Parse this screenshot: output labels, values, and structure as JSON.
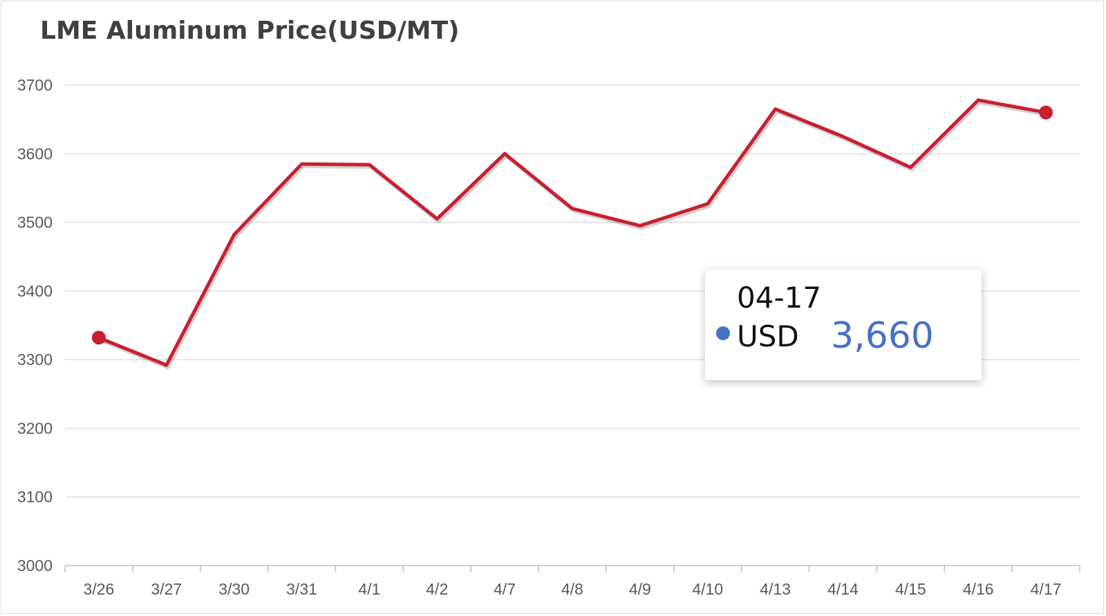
{
  "chart_data": {
    "type": "line",
    "title": "LME Aluminum Price(USD/MT)",
    "categories": [
      "3/26",
      "3/27",
      "3/30",
      "3/31",
      "4/1",
      "4/2",
      "4/7",
      "4/8",
      "4/9",
      "4/10",
      "4/13",
      "4/14",
      "4/15",
      "4/16",
      "4/17"
    ],
    "series": [
      {
        "name": "USD",
        "values": [
          3332,
          3292,
          3482,
          3585,
          3584,
          3505,
          3600,
          3520,
          3495,
          3527,
          3665,
          3625,
          3580,
          3678,
          3660
        ]
      }
    ],
    "ylim": [
      3000,
      3700
    ],
    "yticks": [
      3000,
      3100,
      3200,
      3300,
      3400,
      3500,
      3600,
      3700
    ],
    "grid": true,
    "legend": "none",
    "line_color": "#c8202f",
    "tooltip_dot_color": "#4472c4",
    "tooltip_value_color": "#4472c4"
  },
  "tooltip": {
    "date": "04-17",
    "series": "USD",
    "value": "3,660"
  }
}
